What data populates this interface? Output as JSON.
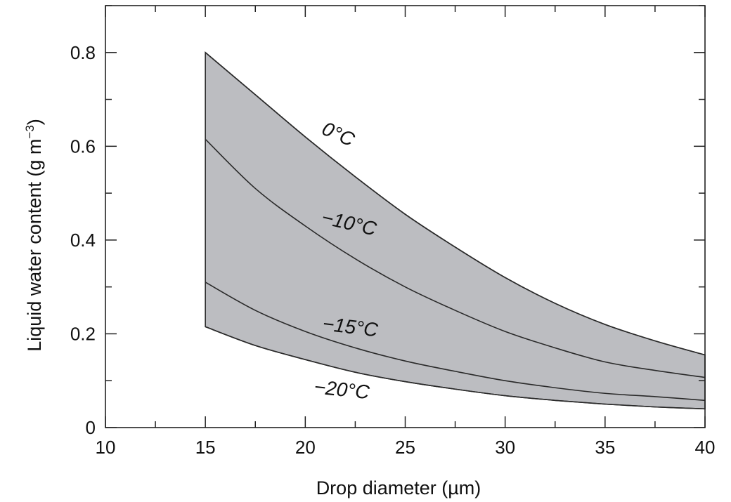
{
  "chart_data": {
    "type": "area",
    "xlabel": "Drop diameter (µm)",
    "ylabel": "Liquid water content (g m",
    "ylabel_exp": "−3",
    "ylabel_close": ")",
    "xlim": [
      10,
      40
    ],
    "ylim": [
      0,
      0.9
    ],
    "x_ticks": [
      10,
      15,
      20,
      25,
      30,
      35,
      40
    ],
    "x_tick_labels": [
      "10",
      "15",
      "20",
      "25",
      "30",
      "35",
      "40"
    ],
    "y_ticks": [
      0,
      0.2,
      0.4,
      0.6,
      0.8
    ],
    "y_tick_labels": [
      "0",
      "0.2",
      "0.4",
      "0.6",
      "0.8"
    ],
    "fill_color": "#bcbdc1",
    "line_color": "#2a2a2a",
    "series": [
      {
        "label": "0°C",
        "x": [
          15,
          17.5,
          20,
          22.5,
          25,
          27.5,
          30,
          32.5,
          35,
          37.5,
          40
        ],
        "y": [
          0.8,
          0.71,
          0.62,
          0.535,
          0.455,
          0.385,
          0.32,
          0.265,
          0.22,
          0.185,
          0.155
        ]
      },
      {
        "label": "−10°C",
        "x": [
          15,
          17.5,
          20,
          22.5,
          25,
          27.5,
          30,
          32.5,
          35,
          37.5,
          40
        ],
        "y": [
          0.615,
          0.51,
          0.43,
          0.36,
          0.3,
          0.25,
          0.205,
          0.17,
          0.14,
          0.122,
          0.107
        ]
      },
      {
        "label": "−15°C",
        "x": [
          15,
          17.5,
          20,
          22.5,
          25,
          27.5,
          30,
          32.5,
          35,
          37.5,
          40
        ],
        "y": [
          0.31,
          0.25,
          0.205,
          0.17,
          0.142,
          0.12,
          0.1,
          0.085,
          0.073,
          0.066,
          0.058
        ]
      },
      {
        "label": "−20°C",
        "x": [
          15,
          17.5,
          20,
          22.5,
          25,
          27.5,
          30,
          32.5,
          35,
          37.5,
          40
        ],
        "y": [
          0.215,
          0.175,
          0.145,
          0.118,
          0.098,
          0.082,
          0.068,
          0.058,
          0.05,
          0.044,
          0.04
        ]
      }
    ]
  }
}
